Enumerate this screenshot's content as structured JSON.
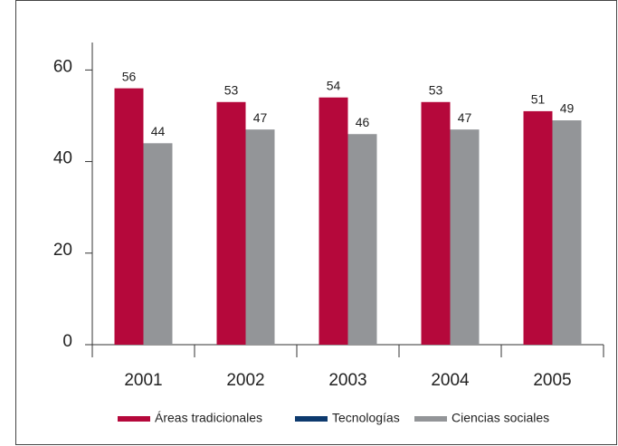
{
  "chart_data": {
    "type": "bar",
    "categories": [
      "2001",
      "2002",
      "2003",
      "2004",
      "2005"
    ],
    "series": [
      {
        "name": "Áreas tradicionales",
        "color": "#b5083b",
        "values": [
          56,
          53,
          54,
          53,
          51
        ]
      },
      {
        "name": "Tecnologías",
        "color": "#0d3a6e",
        "values": [
          null,
          null,
          null,
          null,
          null
        ]
      },
      {
        "name": "Ciencias sociales",
        "color": "#939598",
        "values": [
          44,
          47,
          46,
          47,
          49
        ]
      }
    ],
    "ylim": [
      0,
      66
    ],
    "yticks": [
      0,
      20,
      40,
      60
    ],
    "grid": false,
    "legend": "bottom"
  }
}
